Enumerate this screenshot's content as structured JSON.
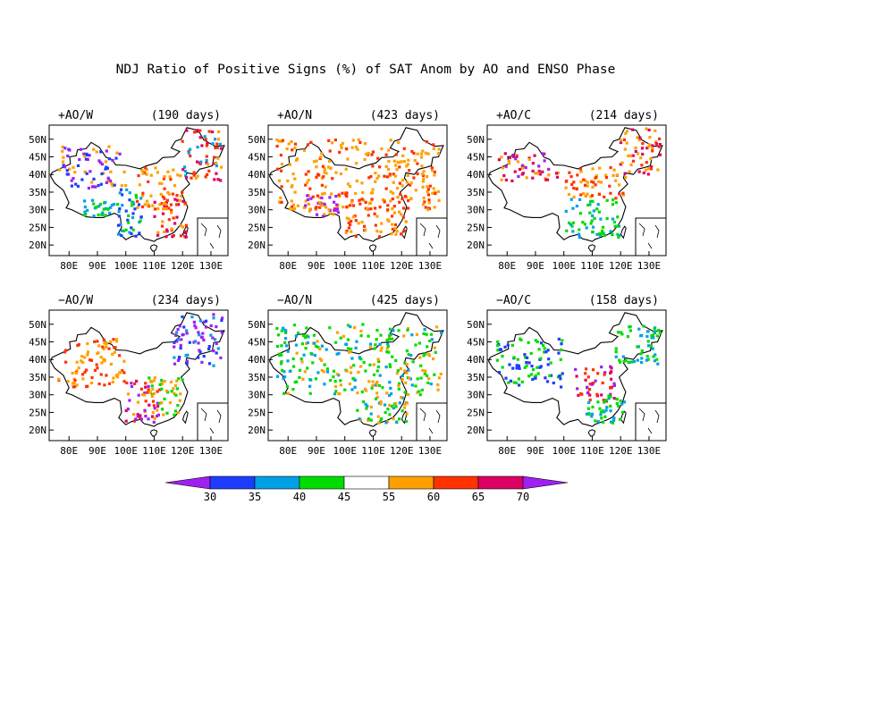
{
  "title": "NDJ Ratio of Positive Signs (%) of SAT Anom by AO and ENSO Phase",
  "chart_data": {
    "type": "scatter",
    "description_axes": {
      "x_ticks": [
        "80E",
        "90E",
        "100E",
        "110E",
        "120E",
        "130E"
      ],
      "y_ticks": [
        "20N",
        "25N",
        "30N",
        "35N",
        "40N",
        "45N",
        "50N"
      ],
      "xlim": [
        73,
        136
      ],
      "ylim": [
        17,
        54
      ]
    },
    "colors": {
      "lt30": "#a020f0",
      "30-35": "#1e3cff",
      "35-40": "#00a0e6",
      "40-45": "#00dc00",
      "45-55": "#ffffff",
      "55-60": "#ffa000",
      "60-65": "#ff3200",
      "65-70": "#dc0064",
      "gt70": "#a020f0"
    },
    "colorbar": {
      "labels": [
        "30",
        "35",
        "40",
        "45",
        "55",
        "60",
        "65",
        "70"
      ],
      "colors": [
        "#1e3cff",
        "#00a0e6",
        "#00dc00",
        "#ffffff",
        "#ffa000",
        "#ff3200",
        "#dc0064"
      ],
      "under_color": "#a020f0",
      "over_color": "#a020f0"
    },
    "panels": [
      {
        "label": "+AO/W",
        "days": "(190 days)",
        "regions": [
          {
            "lon": [
              120,
              134
            ],
            "lat": [
              38,
              53
            ],
            "bins": [
              "65-70",
              "60-65",
              "55-60",
              "35-40"
            ]
          },
          {
            "lon": [
              110,
              122
            ],
            "lat": [
              22,
              33
            ],
            "bins": [
              "60-65",
              "55-60",
              "65-70"
            ]
          },
          {
            "lon": [
              97,
              106
            ],
            "lat": [
              22,
              36
            ],
            "bins": [
              "35-40",
              "40-45",
              "30-35"
            ]
          },
          {
            "lon": [
              104,
              120
            ],
            "lat": [
              30,
              42
            ],
            "bins": [
              "55-60",
              "55-60",
              "60-65"
            ]
          },
          {
            "lon": [
              76,
              100
            ],
            "lat": [
              36,
              48
            ],
            "bins": [
              "55-60",
              "30-35",
              "lt30"
            ]
          },
          {
            "lon": [
              85,
              96
            ],
            "lat": [
              28,
              33
            ],
            "bins": [
              "40-45",
              "35-40"
            ]
          }
        ]
      },
      {
        "label": "+AO/N",
        "days": "(423 days)",
        "regions": [
          {
            "lon": [
              76,
              134
            ],
            "lat": [
              30,
              50
            ],
            "bins": [
              "55-60",
              "55-60",
              "60-65"
            ]
          },
          {
            "lon": [
              100,
              122
            ],
            "lat": [
              22,
              34
            ],
            "bins": [
              "55-60",
              "60-65"
            ]
          },
          {
            "lon": [
              86,
              98
            ],
            "lat": [
              28,
              34
            ],
            "bins": [
              "lt30",
              "55-60"
            ]
          }
        ]
      },
      {
        "label": "+AO/C",
        "days": "(214 days)",
        "regions": [
          {
            "lon": [
              120,
              134
            ],
            "lat": [
              40,
              53
            ],
            "bins": [
              "65-70",
              "60-65",
              "55-60"
            ]
          },
          {
            "lon": [
              100,
              120
            ],
            "lat": [
              22,
              33
            ],
            "bins": [
              "40-45",
              "40-45",
              "35-40"
            ]
          },
          {
            "lon": [
              76,
              98
            ],
            "lat": [
              38,
              46
            ],
            "bins": [
              "lt30",
              "65-70",
              "55-60"
            ]
          },
          {
            "lon": [
              100,
              122
            ],
            "lat": [
              33,
              42
            ],
            "bins": [
              "55-60",
              "60-65"
            ]
          }
        ]
      },
      {
        "label": "−AO/W",
        "days": "(234 days)",
        "regions": [
          {
            "lon": [
              117,
              134
            ],
            "lat": [
              38,
              53
            ],
            "bins": [
              "30-35",
              "lt30",
              "35-40"
            ]
          },
          {
            "lon": [
              100,
              112
            ],
            "lat": [
              22,
              34
            ],
            "bins": [
              "lt30",
              "65-70",
              "60-65",
              "55-60"
            ]
          },
          {
            "lon": [
              108,
              120
            ],
            "lat": [
              24,
              35
            ],
            "bins": [
              "40-45",
              "55-60"
            ]
          },
          {
            "lon": [
              76,
              100
            ],
            "lat": [
              32,
              46
            ],
            "bins": [
              "55-60",
              "60-65"
            ]
          }
        ]
      },
      {
        "label": "−AO/N",
        "days": "(425 days)",
        "regions": [
          {
            "lon": [
              76,
              134
            ],
            "lat": [
              30,
              50
            ],
            "bins": [
              "40-45",
              "40-45",
              "55-60",
              "35-40"
            ]
          },
          {
            "lon": [
              104,
              122
            ],
            "lat": [
              22,
              34
            ],
            "bins": [
              "40-45",
              "35-40",
              "55-60"
            ]
          }
        ]
      },
      {
        "label": "−AO/C",
        "days": "(158 days)",
        "regions": [
          {
            "lon": [
              104,
              118
            ],
            "lat": [
              28,
              38
            ],
            "bins": [
              "lt30",
              "65-70",
              "60-65"
            ]
          },
          {
            "lon": [
              108,
              122
            ],
            "lat": [
              22,
              30
            ],
            "bins": [
              "40-45",
              "35-40"
            ]
          },
          {
            "lon": [
              76,
              100
            ],
            "lat": [
              32,
              46
            ],
            "bins": [
              "40-45",
              "30-35"
            ]
          },
          {
            "lon": [
              118,
              134
            ],
            "lat": [
              38,
              50
            ],
            "bins": [
              "40-45",
              "35-40"
            ]
          }
        ]
      }
    ]
  }
}
